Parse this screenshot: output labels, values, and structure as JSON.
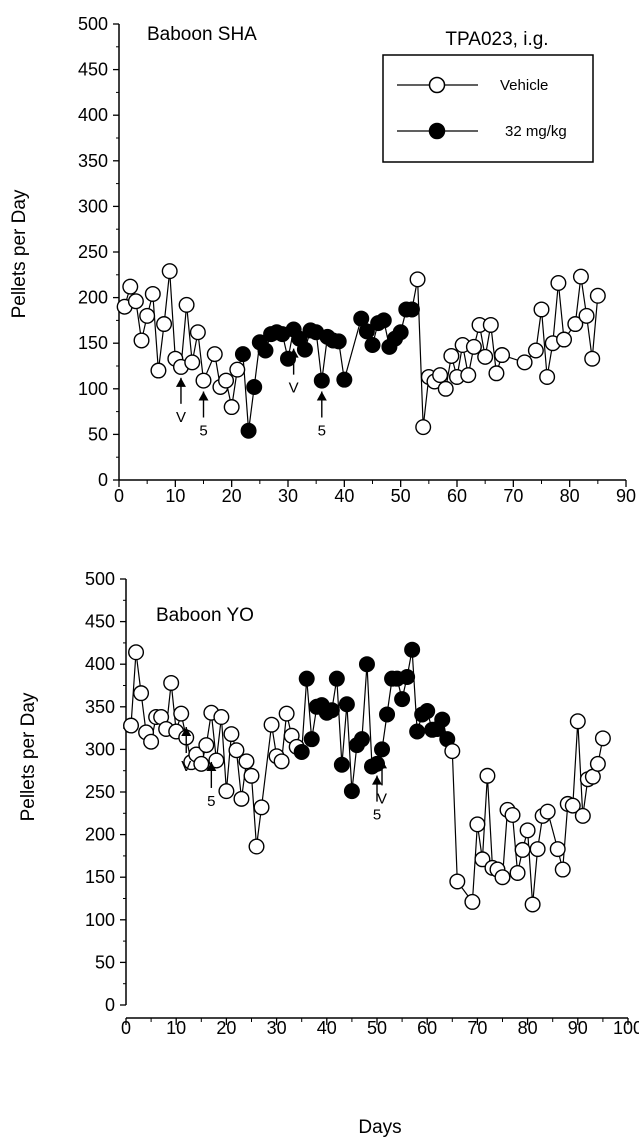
{
  "chart_data": [
    {
      "type": "scatter",
      "title": "Baboon SHA",
      "xlabel": "",
      "ylabel": "Pellets per Day",
      "xlim": [
        0,
        90
      ],
      "ylim": [
        0,
        500
      ],
      "xticks": [
        0,
        10,
        20,
        30,
        40,
        50,
        60,
        70,
        80,
        90
      ],
      "yticks": [
        0,
        50,
        100,
        150,
        200,
        250,
        300,
        350,
        400,
        450,
        500
      ],
      "legend": {
        "title": "TPA023, i.g.",
        "placement": "top-right",
        "entries": [
          {
            "label": "Vehicle",
            "marker": "open-circle"
          },
          {
            "label": "32 mg/kg",
            "marker": "filled-circle"
          }
        ]
      },
      "points": [
        [
          1,
          190,
          0
        ],
        [
          2,
          212,
          0
        ],
        [
          3,
          196,
          0
        ],
        [
          4,
          153,
          0
        ],
        [
          5,
          180,
          0
        ],
        [
          6,
          204,
          0
        ],
        [
          7,
          120,
          0
        ],
        [
          8,
          171,
          0
        ],
        [
          9,
          229,
          0
        ],
        [
          10,
          133,
          0
        ],
        [
          11,
          124,
          0
        ],
        [
          12,
          192,
          0
        ],
        [
          13,
          129,
          0
        ],
        [
          14,
          162,
          0
        ],
        [
          15,
          109,
          0
        ],
        [
          17,
          138,
          0
        ],
        [
          18,
          102,
          0
        ],
        [
          19,
          109,
          0
        ],
        [
          20,
          80,
          0
        ],
        [
          21,
          121,
          0
        ],
        [
          22,
          138,
          1
        ],
        [
          23,
          54,
          1
        ],
        [
          24,
          102,
          1
        ],
        [
          25,
          151,
          1
        ],
        [
          26,
          142,
          1
        ],
        [
          27,
          160,
          1
        ],
        [
          28,
          162,
          1
        ],
        [
          29,
          160,
          1
        ],
        [
          30,
          133,
          1
        ],
        [
          31,
          165,
          1
        ],
        [
          32,
          155,
          1
        ],
        [
          33,
          143,
          1
        ],
        [
          34,
          164,
          1
        ],
        [
          35,
          162,
          1
        ],
        [
          36,
          109,
          1
        ],
        [
          37,
          157,
          1
        ],
        [
          38,
          153,
          1
        ],
        [
          39,
          152,
          1
        ],
        [
          40,
          110,
          1
        ],
        [
          43,
          177,
          1
        ],
        [
          44,
          163,
          1
        ],
        [
          45,
          148,
          1
        ],
        [
          46,
          172,
          1
        ],
        [
          47,
          175,
          1
        ],
        [
          48,
          146,
          1
        ],
        [
          49,
          155,
          1
        ],
        [
          50,
          162,
          1
        ],
        [
          51,
          187,
          1
        ],
        [
          52,
          187,
          1
        ],
        [
          53,
          220,
          0
        ],
        [
          54,
          58,
          0
        ],
        [
          55,
          113,
          0
        ],
        [
          56,
          108,
          0
        ],
        [
          57,
          115,
          0
        ],
        [
          58,
          100,
          0
        ],
        [
          59,
          136,
          0
        ],
        [
          60,
          113,
          0
        ],
        [
          61,
          148,
          0
        ],
        [
          62,
          115,
          0
        ],
        [
          63,
          146,
          0
        ],
        [
          64,
          170,
          0
        ],
        [
          65,
          135,
          0
        ],
        [
          66,
          170,
          0
        ],
        [
          67,
          117,
          0
        ],
        [
          68,
          137,
          0
        ],
        [
          72,
          129,
          0
        ],
        [
          74,
          142,
          0
        ],
        [
          75,
          187,
          0
        ],
        [
          76,
          113,
          0
        ],
        [
          77,
          150,
          0
        ],
        [
          78,
          216,
          0
        ],
        [
          79,
          154,
          0
        ],
        [
          81,
          171,
          0
        ],
        [
          82,
          223,
          0
        ],
        [
          83,
          180,
          0
        ],
        [
          84,
          133,
          0
        ],
        [
          85,
          202,
          0
        ]
      ],
      "annotations": [
        {
          "label": "V",
          "x": 11,
          "y": 123
        },
        {
          "label": "5",
          "x": 15,
          "y": 108
        },
        {
          "label": "V",
          "x": 31,
          "y": 155
        },
        {
          "label": "5",
          "x": 36,
          "y": 108
        }
      ]
    },
    {
      "type": "scatter",
      "title": "Baboon YO",
      "xlabel": "Days",
      "ylabel": "Pellets per Day",
      "xlim": [
        0,
        100
      ],
      "ylim": [
        0,
        500
      ],
      "xticks": [
        0,
        10,
        20,
        30,
        40,
        50,
        60,
        70,
        80,
        90,
        100
      ],
      "yticks": [
        0,
        50,
        100,
        150,
        200,
        250,
        300,
        350,
        400,
        450,
        500
      ],
      "points": [
        [
          1,
          328,
          0
        ],
        [
          2,
          414,
          0
        ],
        [
          3,
          366,
          0
        ],
        [
          4,
          320,
          0
        ],
        [
          5,
          309,
          0
        ],
        [
          6,
          338,
          0
        ],
        [
          7,
          338,
          0
        ],
        [
          8,
          324,
          0
        ],
        [
          9,
          378,
          0
        ],
        [
          10,
          321,
          0
        ],
        [
          11,
          342,
          0
        ],
        [
          12,
          314,
          0
        ],
        [
          13,
          285,
          0
        ],
        [
          14,
          294,
          0
        ],
        [
          15,
          283,
          0
        ],
        [
          16,
          305,
          0
        ],
        [
          17,
          343,
          0
        ],
        [
          18,
          287,
          0
        ],
        [
          19,
          338,
          0
        ],
        [
          20,
          251,
          0
        ],
        [
          21,
          318,
          0
        ],
        [
          22,
          299,
          0
        ],
        [
          23,
          242,
          0
        ],
        [
          24,
          286,
          0
        ],
        [
          25,
          269,
          0
        ],
        [
          26,
          186,
          0
        ],
        [
          27,
          232,
          0
        ],
        [
          29,
          329,
          0
        ],
        [
          30,
          292,
          0
        ],
        [
          31,
          286,
          0
        ],
        [
          32,
          342,
          0
        ],
        [
          33,
          316,
          0
        ],
        [
          34,
          303,
          0
        ],
        [
          35,
          297,
          1
        ],
        [
          36,
          383,
          1
        ],
        [
          37,
          312,
          1
        ],
        [
          38,
          350,
          1
        ],
        [
          39,
          352,
          1
        ],
        [
          40,
          343,
          1
        ],
        [
          41,
          346,
          1
        ],
        [
          42,
          383,
          1
        ],
        [
          43,
          282,
          1
        ],
        [
          44,
          353,
          1
        ],
        [
          45,
          251,
          1
        ],
        [
          46,
          305,
          1
        ],
        [
          47,
          312,
          1
        ],
        [
          48,
          400,
          1
        ],
        [
          49,
          280,
          1
        ],
        [
          50,
          283,
          1
        ],
        [
          51,
          300,
          1
        ],
        [
          52,
          341,
          1
        ],
        [
          53,
          383,
          1
        ],
        [
          54,
          383,
          1
        ],
        [
          55,
          359,
          1
        ],
        [
          56,
          385,
          1
        ],
        [
          57,
          417,
          1
        ],
        [
          58,
          321,
          1
        ],
        [
          59,
          341,
          1
        ],
        [
          60,
          345,
          1
        ],
        [
          61,
          323,
          1
        ],
        [
          62,
          324,
          1
        ],
        [
          63,
          335,
          1
        ],
        [
          64,
          312,
          1
        ],
        [
          65,
          298,
          0
        ],
        [
          66,
          145,
          0
        ],
        [
          69,
          121,
          0
        ],
        [
          70,
          212,
          0
        ],
        [
          71,
          171,
          0
        ],
        [
          72,
          269,
          0
        ],
        [
          73,
          161,
          0
        ],
        [
          74,
          159,
          0
        ],
        [
          75,
          150,
          0
        ],
        [
          76,
          229,
          0
        ],
        [
          77,
          223,
          0
        ],
        [
          78,
          155,
          0
        ],
        [
          79,
          182,
          0
        ],
        [
          80,
          205,
          0
        ],
        [
          81,
          118,
          0
        ],
        [
          82,
          183,
          0
        ],
        [
          83,
          222,
          0
        ],
        [
          84,
          227,
          0
        ],
        [
          86,
          183,
          0
        ],
        [
          87,
          159,
          0
        ],
        [
          88,
          236,
          0
        ],
        [
          89,
          234,
          0
        ],
        [
          90,
          333,
          0
        ],
        [
          91,
          222,
          0
        ],
        [
          92,
          265,
          0
        ],
        [
          93,
          268,
          0
        ],
        [
          94,
          283,
          0
        ],
        [
          95,
          313,
          0
        ]
      ],
      "annotations": [
        {
          "label": "V",
          "x": 12,
          "y": 338
        },
        {
          "label": "5",
          "x": 17,
          "y": 297
        },
        {
          "label": "5",
          "x": 50,
          "y": 281
        },
        {
          "label": "V",
          "x": 51,
          "y": 300
        }
      ]
    }
  ]
}
